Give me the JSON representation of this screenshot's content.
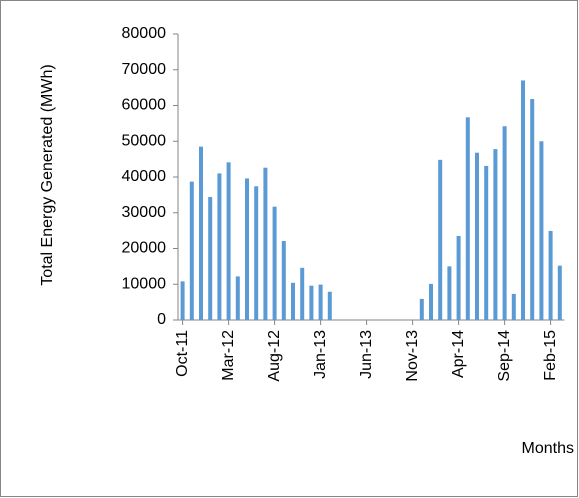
{
  "chart_data": {
    "type": "bar",
    "y_axis_label": "Total Energy Generated (MWh)",
    "x_axis_label": "Months",
    "categories": [
      "Oct-11",
      null,
      null,
      null,
      null,
      "Mar-12",
      null,
      null,
      null,
      null,
      "Aug-12",
      null,
      null,
      null,
      null,
      "Jan-13",
      null,
      null,
      null,
      null,
      "Jun-13",
      null,
      null,
      null,
      null,
      "Nov-13",
      null,
      null,
      null,
      null,
      "Apr-14",
      null,
      null,
      null,
      null,
      "Sep-14",
      null,
      null,
      null,
      null,
      "Feb-15",
      null
    ],
    "values": [
      10800,
      38700,
      48500,
      34400,
      41000,
      44100,
      12200,
      39600,
      37400,
      42600,
      31700,
      22100,
      10400,
      14600,
      9600,
      9900,
      7900,
      null,
      null,
      null,
      null,
      null,
      null,
      null,
      null,
      null,
      5900,
      10100,
      44800,
      15000,
      23500,
      56700,
      46800,
      43100,
      47800,
      54200,
      7300,
      67000,
      61800,
      50000,
      24900,
      15200
    ],
    "color": "#5b9bd5",
    "ylim": [
      0,
      80000
    ],
    "yticks": [
      0,
      10000,
      20000,
      30000,
      40000,
      50000,
      60000,
      70000,
      80000
    ],
    "grid": false
  }
}
